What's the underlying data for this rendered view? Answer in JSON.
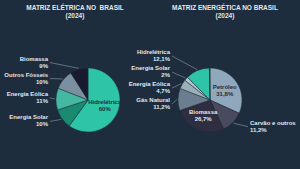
{
  "chart_data": [
    {
      "type": "pie",
      "title": "MATRIZ ELÉTRICA NO  BRASIL",
      "subtitle": "(2024)",
      "categories": [
        "Hidrelétrica",
        "Energia Solar",
        "Energia Eólica",
        "Outros Fósseis",
        "Biomassa"
      ],
      "values": [
        60,
        10,
        11,
        10,
        9
      ],
      "value_labels": [
        "60%",
        "10%",
        "11%",
        "10%",
        "9%"
      ],
      "colors": [
        "#2dc4a8",
        "#1a8a70",
        "#44b8a0",
        "#7a8fa0",
        "#1a1a2e"
      ],
      "data_labels": true
    },
    {
      "type": "pie",
      "title": "MATRIZ ENERGÉTICA NO BRASIL",
      "subtitle": "(2024)",
      "categories": [
        "Petróleo",
        "Carvão e outros",
        "Biomassa",
        "Gás Natural",
        "Energia Eólica",
        "Energia Solar",
        "Hidrelétrica",
        null
      ],
      "values": [
        31.8,
        11.2,
        26.7,
        11.2,
        4.7,
        2.0,
        12.1,
        0.3
      ],
      "value_labels": [
        "31,8%",
        "11,2%",
        "26,7%",
        "11,2%",
        "4,7%",
        "2%",
        "12,1%",
        null
      ],
      "colors": [
        "#8fa8bc",
        "#4a4a5e",
        "#2e2e40",
        "#6a7e8f",
        "#9ab0b8",
        "#b0c4cc",
        "#2dc4a8",
        "#3a4a5a"
      ],
      "data_labels": true
    }
  ]
}
